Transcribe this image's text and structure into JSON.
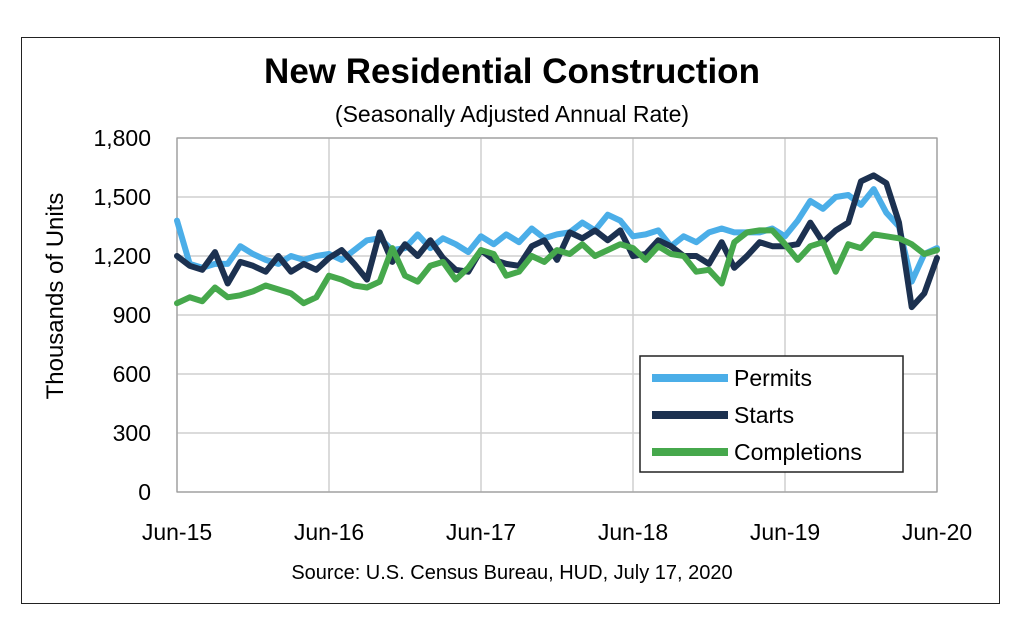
{
  "chart_data": {
    "type": "line",
    "title": "New Residential Construction",
    "subtitle": "(Seasonally Adjusted Annual Rate)",
    "ylabel": "Thousands of Units",
    "source": "Source:  U.S. Census Bureau, HUD, July 17, 2020",
    "ylim": [
      0,
      1800
    ],
    "yticks": [
      0,
      300,
      600,
      900,
      1200,
      1500,
      1800
    ],
    "ytick_labels": [
      "0",
      "300",
      "600",
      "900",
      "1,200",
      "1,500",
      "1,800"
    ],
    "xtick_labels": [
      "Jun-15",
      "Jun-16",
      "Jun-17",
      "Jun-18",
      "Jun-19",
      "Jun-20"
    ],
    "x_months": 60,
    "grid": true,
    "legend_position": "bottom-right",
    "series": [
      {
        "name": "Permits",
        "color": "#4baee8",
        "values": [
          1380,
          1160,
          1140,
          1160,
          1160,
          1250,
          1210,
          1180,
          1160,
          1200,
          1180,
          1200,
          1210,
          1180,
          1230,
          1280,
          1290,
          1230,
          1240,
          1310,
          1240,
          1290,
          1260,
          1220,
          1300,
          1260,
          1310,
          1270,
          1340,
          1290,
          1310,
          1320,
          1370,
          1330,
          1410,
          1380,
          1300,
          1310,
          1330,
          1250,
          1300,
          1270,
          1320,
          1340,
          1320,
          1320,
          1320,
          1340,
          1300,
          1380,
          1480,
          1440,
          1500,
          1510,
          1460,
          1540,
          1420,
          1350,
          1070,
          1210,
          1240
        ]
      },
      {
        "name": "Starts",
        "color": "#1c3150",
        "values": [
          1200,
          1150,
          1130,
          1220,
          1060,
          1170,
          1150,
          1120,
          1200,
          1120,
          1160,
          1130,
          1190,
          1230,
          1160,
          1080,
          1320,
          1170,
          1260,
          1200,
          1280,
          1190,
          1130,
          1120,
          1230,
          1180,
          1160,
          1150,
          1250,
          1280,
          1180,
          1320,
          1290,
          1330,
          1280,
          1330,
          1200,
          1210,
          1280,
          1250,
          1200,
          1200,
          1160,
          1270,
          1140,
          1200,
          1270,
          1250,
          1250,
          1260,
          1370,
          1270,
          1330,
          1370,
          1580,
          1610,
          1570,
          1370,
          940,
          1010,
          1190
        ]
      },
      {
        "name": "Completions",
        "color": "#46a84c",
        "values": [
          960,
          990,
          970,
          1040,
          990,
          1000,
          1020,
          1050,
          1030,
          1010,
          960,
          990,
          1100,
          1080,
          1050,
          1040,
          1070,
          1240,
          1100,
          1070,
          1150,
          1170,
          1080,
          1140,
          1230,
          1210,
          1100,
          1120,
          1200,
          1170,
          1230,
          1210,
          1260,
          1200,
          1230,
          1260,
          1240,
          1180,
          1250,
          1210,
          1200,
          1120,
          1130,
          1060,
          1270,
          1320,
          1330,
          1330,
          1260,
          1180,
          1250,
          1270,
          1120,
          1260,
          1240,
          1310,
          1300,
          1290,
          1260,
          1210,
          1230
        ]
      }
    ]
  }
}
